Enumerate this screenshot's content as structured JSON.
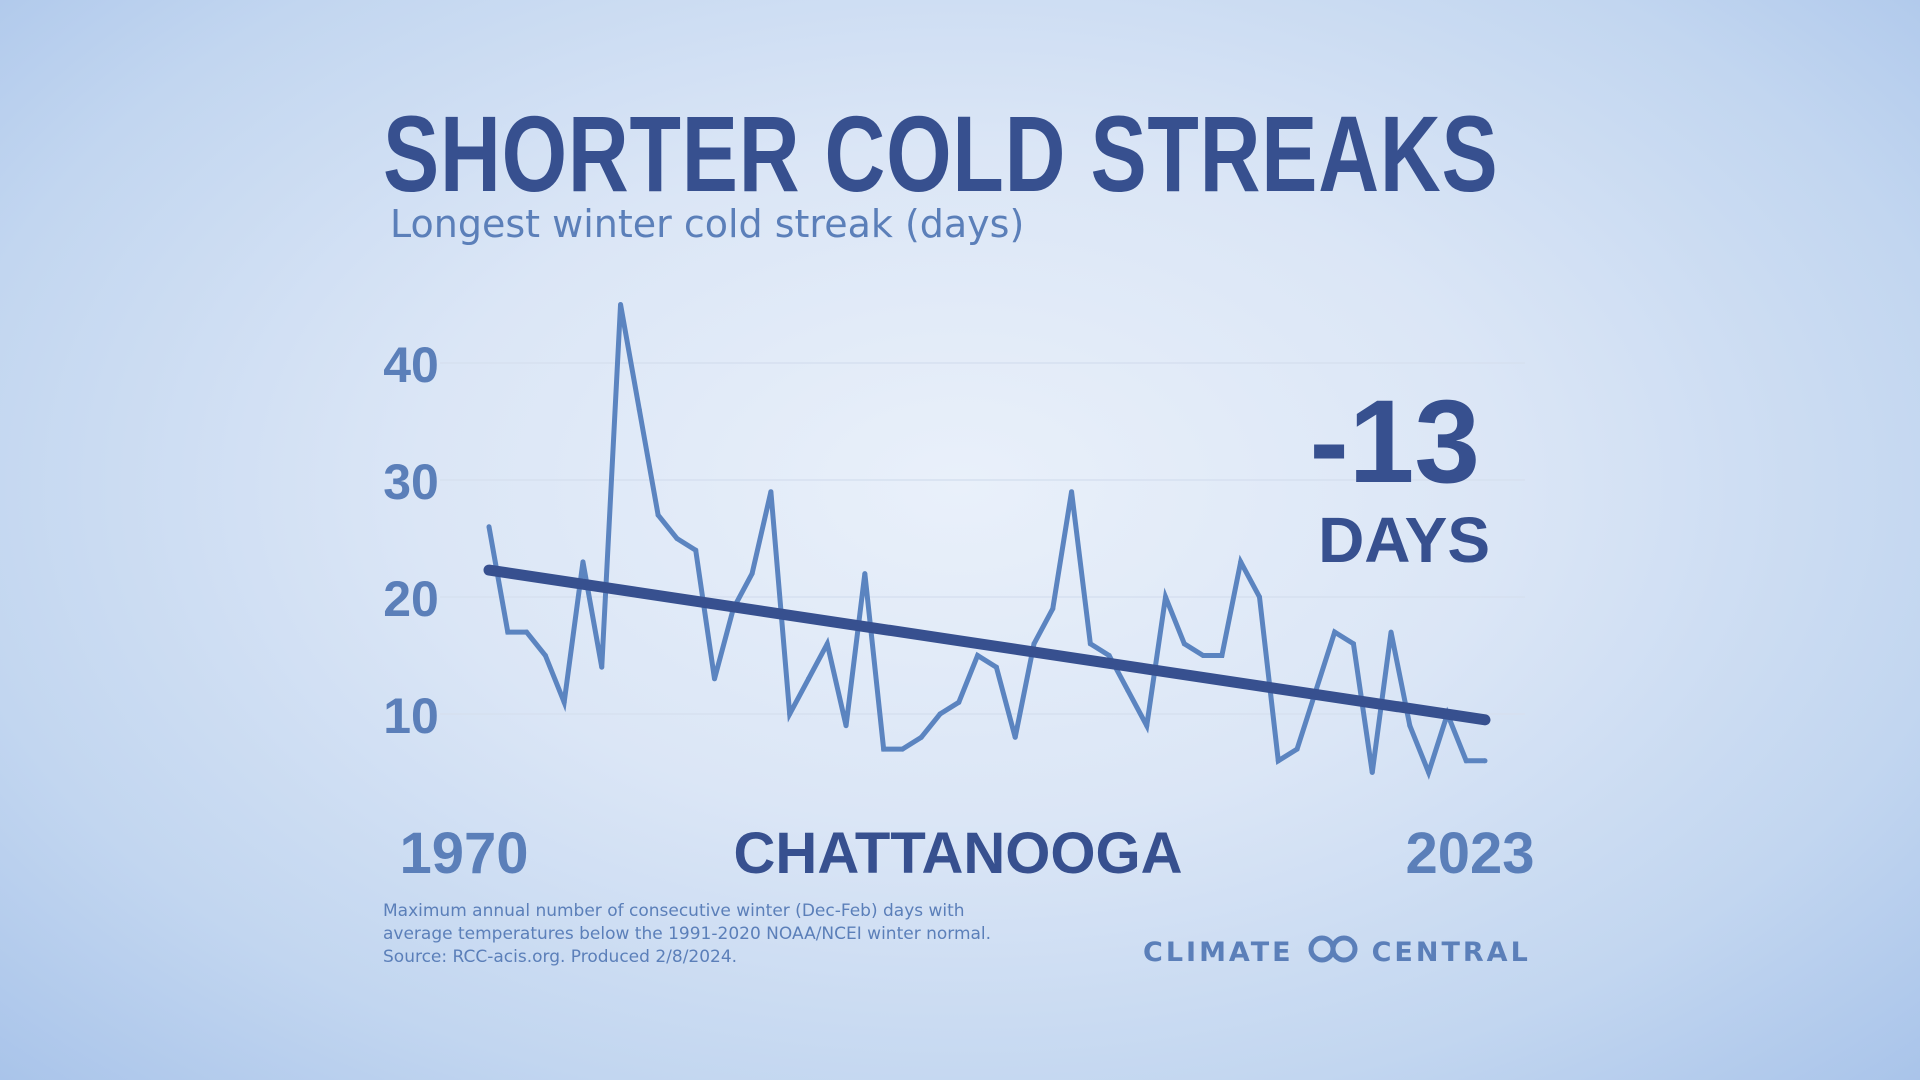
{
  "header": {
    "title": "SHORTER COLD STREAKS",
    "subtitle": "Longest winter cold streak (days)"
  },
  "callout": {
    "value": "-13",
    "unit": "DAYS"
  },
  "location": "CHATTANOOGA",
  "x_axis": {
    "start_label": "1970",
    "end_label": "2023"
  },
  "y_axis": {
    "ticks": [
      "40",
      "30",
      "20",
      "10"
    ]
  },
  "colors": {
    "title": "#37508f",
    "series": "#5b84c0",
    "trend": "#37508f",
    "label": "#5b7fb9",
    "gridline": "#d6e0ef"
  },
  "footnote": {
    "line1": "Maximum annual number of consecutive winter (Dec-Feb) days with",
    "line2": "average temperatures below the 1991-2020 NOAA/NCEI winter normal.",
    "line3": "Source: RCC-acis.org. Produced 2/8/2024."
  },
  "logo": {
    "left": "CLIMATE",
    "right": "CENTRAL",
    "icon": "climate-central-rings-icon"
  },
  "chart_data": {
    "type": "line",
    "xlabel": "",
    "ylabel": "",
    "ylim": [
      0,
      45
    ],
    "grid": true,
    "x": [
      1970,
      1971,
      1972,
      1973,
      1974,
      1975,
      1976,
      1977,
      1978,
      1979,
      1980,
      1981,
      1982,
      1983,
      1984,
      1985,
      1986,
      1987,
      1988,
      1989,
      1990,
      1991,
      1992,
      1993,
      1994,
      1995,
      1996,
      1997,
      1998,
      1999,
      2000,
      2001,
      2002,
      2003,
      2004,
      2005,
      2006,
      2007,
      2008,
      2009,
      2010,
      2011,
      2012,
      2013,
      2014,
      2015,
      2016,
      2017,
      2018,
      2019,
      2020,
      2021,
      2022,
      2023
    ],
    "series": [
      {
        "name": "",
        "values": [
          26,
          17,
          17,
          15,
          11,
          23,
          14,
          45,
          36,
          27,
          25,
          24,
          13,
          19,
          22,
          29,
          10,
          13,
          16,
          9,
          22,
          7,
          7,
          8,
          10,
          11,
          15,
          14,
          8,
          16,
          19,
          29,
          16,
          15,
          12,
          9,
          20,
          16,
          15,
          15,
          23,
          20,
          6,
          7,
          12,
          17,
          16,
          5,
          17,
          9,
          5,
          10,
          6,
          6
        ]
      },
      {
        "name": "",
        "type": "trend",
        "values": [
          22.3,
          9.5
        ],
        "x": [
          1970,
          2023
        ]
      }
    ],
    "annotation": {
      "text": "-13 DAYS"
    }
  }
}
